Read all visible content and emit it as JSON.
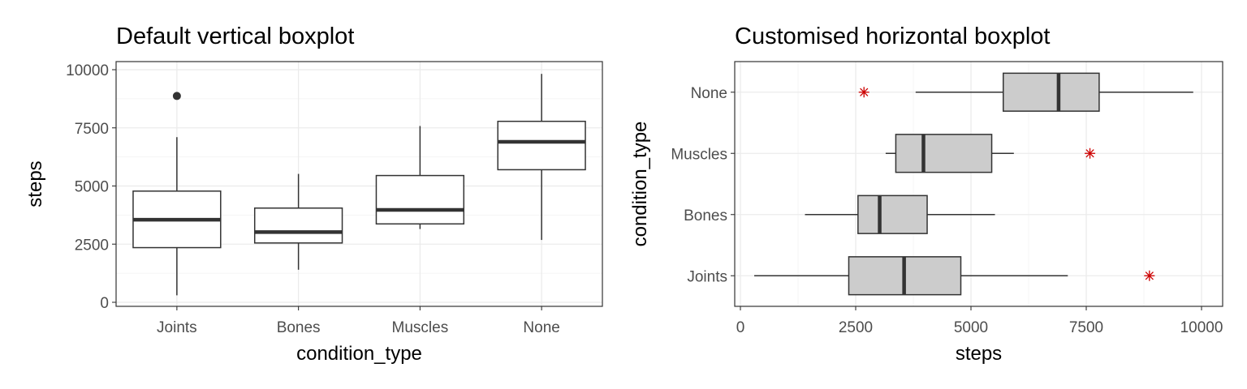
{
  "chart_data": [
    {
      "type": "boxplot",
      "title": "Default vertical boxplot",
      "xlabel": "condition_type",
      "ylabel": "steps",
      "orientation": "vertical",
      "ylim": [
        0,
        10000
      ],
      "yticks": [
        0,
        2500,
        5000,
        7500,
        10000
      ],
      "ytick_labels": [
        "0",
        "2500",
        "5000",
        "7500",
        "10000"
      ],
      "categories": [
        "Joints",
        "Bones",
        "Muscles",
        "None"
      ],
      "boxes": [
        {
          "category": "Joints",
          "min": 300,
          "q1": 2350,
          "median": 3550,
          "q3": 4780,
          "max": 7100,
          "outliers": [
            8870
          ]
        },
        {
          "category": "Bones",
          "min": 1400,
          "q1": 2550,
          "median": 3020,
          "q3": 4050,
          "max": 5520,
          "outliers": []
        },
        {
          "category": "Muscles",
          "min": 3150,
          "q1": 3370,
          "median": 3970,
          "q3": 5450,
          "max": 7580,
          "outliers": []
        },
        {
          "category": "None",
          "min": 2680,
          "q1": 5700,
          "median": 6900,
          "q3": 7780,
          "max": 9820,
          "outliers": []
        }
      ],
      "colors": {
        "box_fill": "#ffffff",
        "box_line": "#333333",
        "outlier": "#333333"
      },
      "grid": true
    },
    {
      "type": "boxplot",
      "title": "Customised horizontal boxplot",
      "xlabel": "steps",
      "ylabel": "condition_type",
      "orientation": "horizontal",
      "xlim": [
        0,
        10000
      ],
      "xticks": [
        0,
        2500,
        5000,
        7500,
        10000
      ],
      "xtick_labels": [
        "0",
        "2500",
        "5000",
        "7500",
        "10000"
      ],
      "categories": [
        "Joints",
        "Bones",
        "Muscles",
        "None"
      ],
      "boxes": [
        {
          "category": "Joints",
          "min": 300,
          "q1": 2350,
          "median": 3550,
          "q3": 4780,
          "max": 7100,
          "outliers": [
            8870
          ]
        },
        {
          "category": "Bones",
          "min": 1400,
          "q1": 2550,
          "median": 3020,
          "q3": 4050,
          "max": 5520,
          "outliers": []
        },
        {
          "category": "Muscles",
          "min": 3150,
          "q1": 3370,
          "median": 3970,
          "q3": 5450,
          "max": 5930,
          "outliers": [
            7580
          ]
        },
        {
          "category": "None",
          "min": 3800,
          "q1": 5700,
          "median": 6900,
          "q3": 7780,
          "max": 9820,
          "outliers": [
            2680
          ]
        }
      ],
      "colors": {
        "box_fill": "#cccccc",
        "box_line": "#333333",
        "outlier": "#cc0000"
      },
      "outlier_marker": "asterisk",
      "grid": true
    }
  ]
}
